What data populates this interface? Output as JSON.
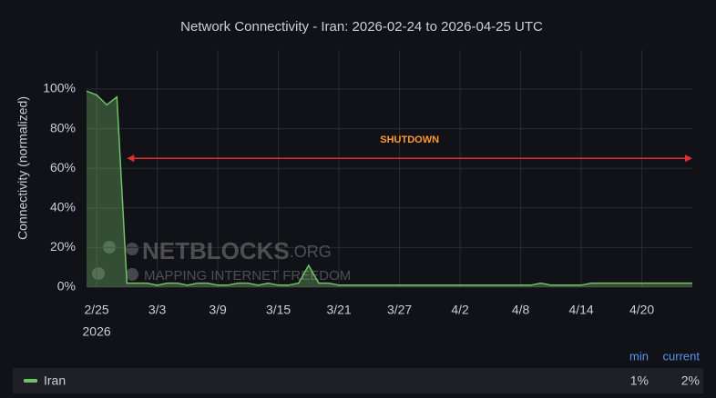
{
  "chart_data": {
    "type": "area",
    "title": "Network Connectivity - Iran: 2026-02-24 to 2026-04-25 UTC",
    "y_label": "Connectivity (normalized)",
    "xlim": [
      "2026-02-24",
      "2026-04-25"
    ],
    "xticks": [
      {
        "value": "2026-02-25",
        "label": "2/25"
      },
      {
        "value": "2026-03-03",
        "label": "3/3"
      },
      {
        "value": "2026-03-09",
        "label": "3/9"
      },
      {
        "value": "2026-03-15",
        "label": "3/15"
      },
      {
        "value": "2026-03-21",
        "label": "3/21"
      },
      {
        "value": "2026-03-27",
        "label": "3/27"
      },
      {
        "value": "2026-04-02",
        "label": "4/2"
      },
      {
        "value": "2026-04-08",
        "label": "4/8"
      },
      {
        "value": "2026-04-14",
        "label": "4/14"
      },
      {
        "value": "2026-04-20",
        "label": "4/20"
      }
    ],
    "x_year_label": "2026",
    "ylim": [
      0,
      100
    ],
    "yticks": [
      {
        "value": 0,
        "label": "0%"
      },
      {
        "value": 20,
        "label": "20%"
      },
      {
        "value": 40,
        "label": "40%"
      },
      {
        "value": 60,
        "label": "60%"
      },
      {
        "value": 80,
        "label": "80%"
      },
      {
        "value": 100,
        "label": "100%"
      }
    ],
    "grid": true,
    "x": [
      "2026-02-24",
      "2026-02-25",
      "2026-02-26",
      "2026-02-27",
      "2026-02-28",
      "2026-03-01",
      "2026-03-02",
      "2026-03-03",
      "2026-03-04",
      "2026-03-05",
      "2026-03-06",
      "2026-03-07",
      "2026-03-08",
      "2026-03-09",
      "2026-03-10",
      "2026-03-11",
      "2026-03-12",
      "2026-03-13",
      "2026-03-14",
      "2026-03-15",
      "2026-03-16",
      "2026-03-17",
      "2026-03-18",
      "2026-03-19",
      "2026-03-20",
      "2026-03-21",
      "2026-03-22",
      "2026-03-23",
      "2026-03-24",
      "2026-03-25",
      "2026-03-26",
      "2026-03-27",
      "2026-03-28",
      "2026-03-29",
      "2026-03-30",
      "2026-03-31",
      "2026-04-01",
      "2026-04-02",
      "2026-04-03",
      "2026-04-04",
      "2026-04-05",
      "2026-04-06",
      "2026-04-07",
      "2026-04-08",
      "2026-04-09",
      "2026-04-10",
      "2026-04-11",
      "2026-04-12",
      "2026-04-13",
      "2026-04-14",
      "2026-04-15",
      "2026-04-16",
      "2026-04-17",
      "2026-04-18",
      "2026-04-19",
      "2026-04-20",
      "2026-04-21",
      "2026-04-22",
      "2026-04-23",
      "2026-04-24",
      "2026-04-25"
    ],
    "series": [
      {
        "name": "Iran",
        "color": "#73bf69",
        "values": [
          99,
          97,
          92,
          96,
          2,
          2,
          2,
          1,
          2,
          2,
          1,
          2,
          2,
          1,
          1,
          2,
          2,
          1,
          2,
          1,
          1,
          2,
          11,
          2,
          2,
          1,
          1,
          1,
          1,
          1,
          1,
          1,
          1,
          1,
          1,
          1,
          1,
          1,
          1,
          1,
          1,
          1,
          1,
          1,
          1,
          2,
          1,
          1,
          1,
          1,
          2,
          2,
          2,
          2,
          2,
          2,
          2,
          2,
          2,
          2,
          2
        ]
      }
    ],
    "annotation": {
      "text": "SHUTDOWN",
      "x_start": "2026-02-28",
      "x_end": "2026-04-25",
      "y": 65,
      "color": "#e02f2f",
      "text_color": "#ff9830"
    },
    "legend_headers": [
      "min",
      "current"
    ],
    "legend_stats": [
      "1%",
      "2%"
    ],
    "watermark": {
      "name": "NETBLOCKS",
      "suffix": ".ORG",
      "tagline": "MAPPING INTERNET FREEDOM"
    }
  }
}
